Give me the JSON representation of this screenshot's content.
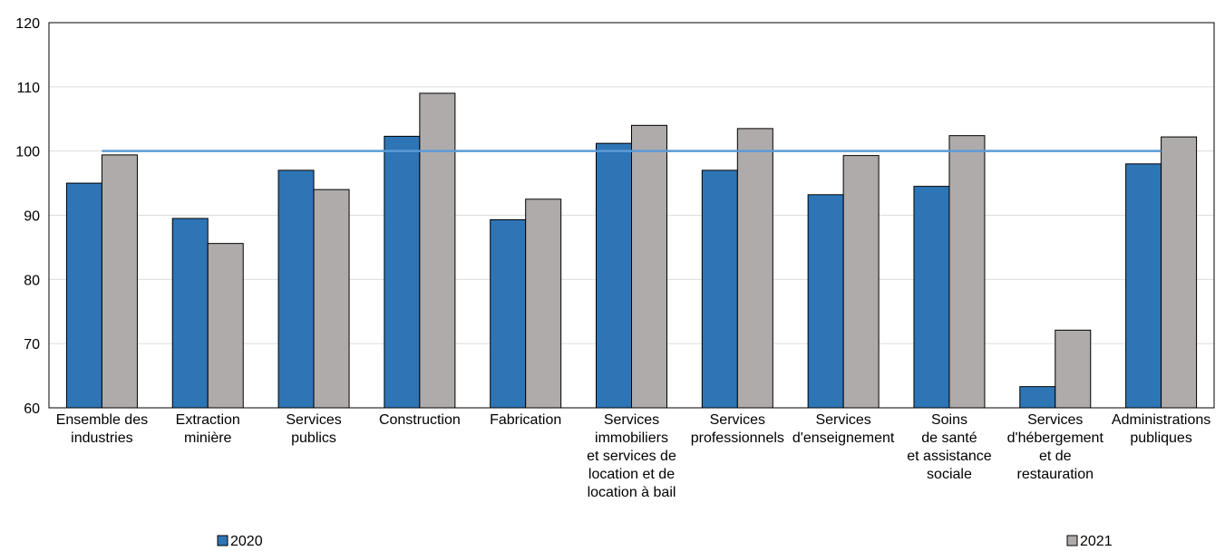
{
  "chart_data": {
    "type": "bar",
    "categories": [
      [
        "Ensemble des",
        "industries"
      ],
      [
        "Extraction",
        "minière"
      ],
      [
        "Services",
        "publics"
      ],
      [
        "Construction"
      ],
      [
        "Fabrication"
      ],
      [
        "Services",
        "immobiliers",
        "et services de",
        "location et de",
        "location à bail"
      ],
      [
        "Services",
        "professionnels"
      ],
      [
        "Services",
        "d'enseignement"
      ],
      [
        "Soins",
        "de santé",
        "et assistance",
        "sociale"
      ],
      [
        "Services",
        "d'hébergement",
        "et de",
        "restauration"
      ],
      [
        "Administrations",
        "publiques"
      ]
    ],
    "series": [
      {
        "name": "2020",
        "color": "#2e75b6",
        "values": [
          95.0,
          89.5,
          97.0,
          102.3,
          89.3,
          101.2,
          97.0,
          93.2,
          94.5,
          63.3,
          98.0
        ]
      },
      {
        "name": "2021",
        "color": "#afabab",
        "values": [
          99.4,
          85.6,
          94.0,
          109.0,
          92.5,
          104.0,
          103.5,
          99.3,
          102.4,
          72.1,
          102.2
        ]
      }
    ],
    "reference_line": {
      "value": 100,
      "color": "#5b9bd5"
    },
    "ylim": [
      60,
      120
    ],
    "yticks": [
      60,
      70,
      80,
      90,
      100,
      110,
      120
    ],
    "grid": true,
    "legend_placement": "bottom"
  }
}
